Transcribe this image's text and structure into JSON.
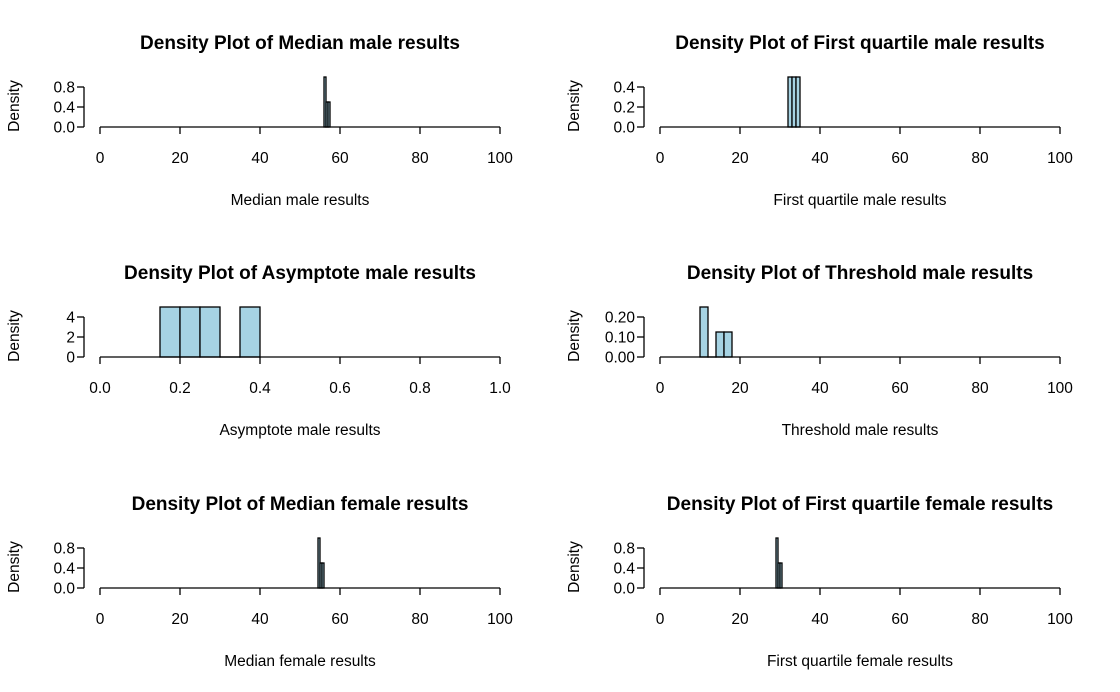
{
  "colors": {
    "bar_fill": "#a6d3e3",
    "axis": "#000000",
    "background": "#ffffff"
  },
  "chart_data": [
    {
      "type": "bar",
      "subtype": "histogram",
      "title": "Density Plot of Median male results",
      "xlabel": "Median male results",
      "ylabel": "Density",
      "xlim": [
        0,
        100
      ],
      "ylim": [
        0,
        1
      ],
      "x_ticks": [
        0,
        20,
        40,
        60,
        80,
        100
      ],
      "x_tick_labels": [
        "0",
        "20",
        "40",
        "60",
        "80",
        "100"
      ],
      "y_ticks": [
        0,
        0.4,
        0.8
      ],
      "y_tick_labels": [
        "0.0",
        "0.4",
        "0.8"
      ],
      "bins": [
        {
          "start": 56,
          "end": 56.5,
          "density": 1.0
        },
        {
          "start": 56.5,
          "end": 57,
          "density": 0.5
        },
        {
          "start": 57,
          "end": 57.5,
          "density": 0.5
        }
      ]
    },
    {
      "type": "bar",
      "subtype": "histogram",
      "title": "Density Plot of First quartile male results",
      "xlabel": "First quartile male results",
      "ylabel": "Density",
      "xlim": [
        0,
        100
      ],
      "ylim": [
        0,
        0.5
      ],
      "x_ticks": [
        0,
        20,
        40,
        60,
        80,
        100
      ],
      "x_tick_labels": [
        "0",
        "20",
        "40",
        "60",
        "80",
        "100"
      ],
      "y_ticks": [
        0,
        0.2,
        0.4
      ],
      "y_tick_labels": [
        "0.0",
        "0.2",
        "0.4"
      ],
      "bins": [
        {
          "start": 32,
          "end": 33,
          "density": 0.5
        },
        {
          "start": 33,
          "end": 34,
          "density": 0.5
        },
        {
          "start": 34,
          "end": 35,
          "density": 0.5
        }
      ]
    },
    {
      "type": "bar",
      "subtype": "histogram",
      "title": "Density Plot of Asymptote male results",
      "xlabel": "Asymptote male results",
      "ylabel": "Density",
      "xlim": [
        0,
        1
      ],
      "ylim": [
        0,
        5
      ],
      "x_ticks": [
        0,
        0.2,
        0.4,
        0.6,
        0.8,
        1.0
      ],
      "x_tick_labels": [
        "0.0",
        "0.2",
        "0.4",
        "0.6",
        "0.8",
        "1.0"
      ],
      "y_ticks": [
        0,
        2,
        4
      ],
      "y_tick_labels": [
        "0",
        "2",
        "4"
      ],
      "bins": [
        {
          "start": 0.15,
          "end": 0.2,
          "density": 5
        },
        {
          "start": 0.2,
          "end": 0.25,
          "density": 5
        },
        {
          "start": 0.25,
          "end": 0.3,
          "density": 5
        },
        {
          "start": 0.3,
          "end": 0.35,
          "density": 0
        },
        {
          "start": 0.35,
          "end": 0.4,
          "density": 5
        }
      ]
    },
    {
      "type": "bar",
      "subtype": "histogram",
      "title": "Density Plot of Threshold male results",
      "xlabel": "Threshold male results",
      "ylabel": "Density",
      "xlim": [
        0,
        100
      ],
      "ylim": [
        0,
        0.25
      ],
      "x_ticks": [
        0,
        20,
        40,
        60,
        80,
        100
      ],
      "x_tick_labels": [
        "0",
        "20",
        "40",
        "60",
        "80",
        "100"
      ],
      "y_ticks": [
        0,
        0.1,
        0.2
      ],
      "y_tick_labels": [
        "0.00",
        "0.10",
        "0.20"
      ],
      "bins": [
        {
          "start": 10,
          "end": 12,
          "density": 0.25
        },
        {
          "start": 12,
          "end": 14,
          "density": 0
        },
        {
          "start": 14,
          "end": 16,
          "density": 0.125
        },
        {
          "start": 16,
          "end": 18,
          "density": 0.125
        }
      ]
    },
    {
      "type": "bar",
      "subtype": "histogram",
      "title": "Density Plot of Median female results",
      "xlabel": "Median female results",
      "ylabel": "Density",
      "xlim": [
        0,
        100
      ],
      "ylim": [
        0,
        1
      ],
      "x_ticks": [
        0,
        20,
        40,
        60,
        80,
        100
      ],
      "x_tick_labels": [
        "0",
        "20",
        "40",
        "60",
        "80",
        "100"
      ],
      "y_ticks": [
        0,
        0.4,
        0.8
      ],
      "y_tick_labels": [
        "0.0",
        "0.4",
        "0.8"
      ],
      "bins": [
        {
          "start": 54.5,
          "end": 55,
          "density": 1.0
        },
        {
          "start": 55,
          "end": 55.5,
          "density": 0.5
        },
        {
          "start": 55.5,
          "end": 56,
          "density": 0.5
        }
      ]
    },
    {
      "type": "bar",
      "subtype": "histogram",
      "title": "Density Plot of First quartile female results",
      "xlabel": "First quartile female results",
      "ylabel": "Density",
      "xlim": [
        0,
        100
      ],
      "ylim": [
        0,
        1
      ],
      "x_ticks": [
        0,
        20,
        40,
        60,
        80,
        100
      ],
      "x_tick_labels": [
        "0",
        "20",
        "40",
        "60",
        "80",
        "100"
      ],
      "y_ticks": [
        0,
        0.4,
        0.8
      ],
      "y_tick_labels": [
        "0.0",
        "0.4",
        "0.8"
      ],
      "bins": [
        {
          "start": 29,
          "end": 29.5,
          "density": 1.0
        },
        {
          "start": 29.5,
          "end": 30,
          "density": 0.5
        },
        {
          "start": 30,
          "end": 30.5,
          "density": 0.5
        }
      ]
    }
  ]
}
